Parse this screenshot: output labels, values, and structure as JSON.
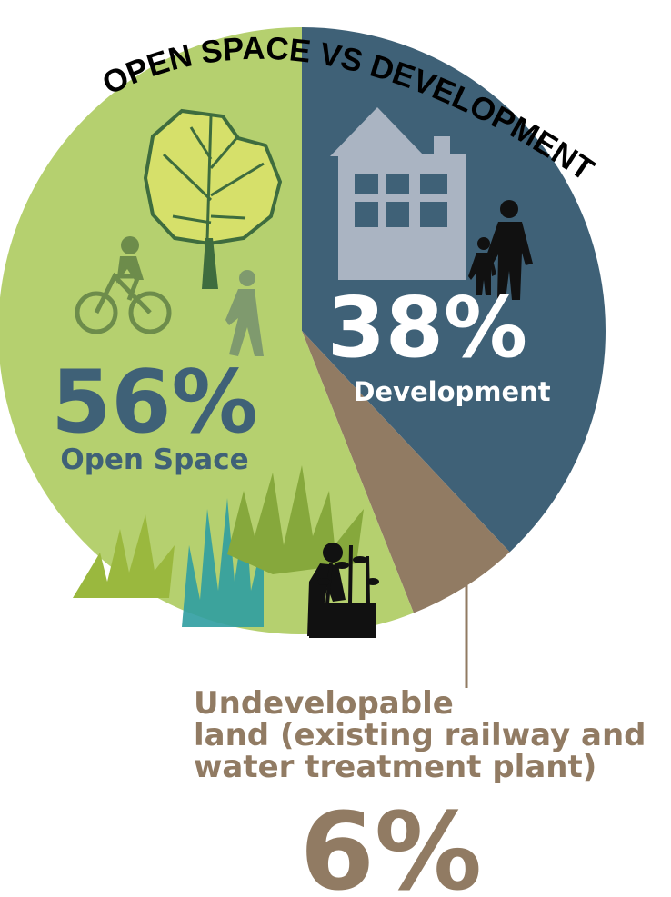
{
  "chart_data": {
    "type": "pie",
    "title": "OPEN SPACE VS DEVELOPMENT",
    "slices": [
      {
        "label": "Development",
        "value": 38,
        "value_label": "38%",
        "color": "#3f6177"
      },
      {
        "label": "Undevelopable land (existing railway and water treatment plant)",
        "value": 6,
        "value_label": "6%",
        "color": "#917b63"
      },
      {
        "label": "Open Space",
        "value": 56,
        "value_label": "56%",
        "color": "#b5d06f"
      }
    ]
  },
  "labels": {
    "development_pct": "38%",
    "development_name": "Development",
    "open_pct": "56%",
    "open_name": "Open Space",
    "undev_line1": "Undevelopable",
    "undev_line2": "land (existing railway and",
    "undev_line3": "water treatment plant)",
    "undev_pct": "6%"
  },
  "icons": [
    "house-icon",
    "family-icon",
    "tree-icon",
    "cyclist-icon",
    "walker-icon",
    "grass-icon",
    "gardener-icon"
  ]
}
